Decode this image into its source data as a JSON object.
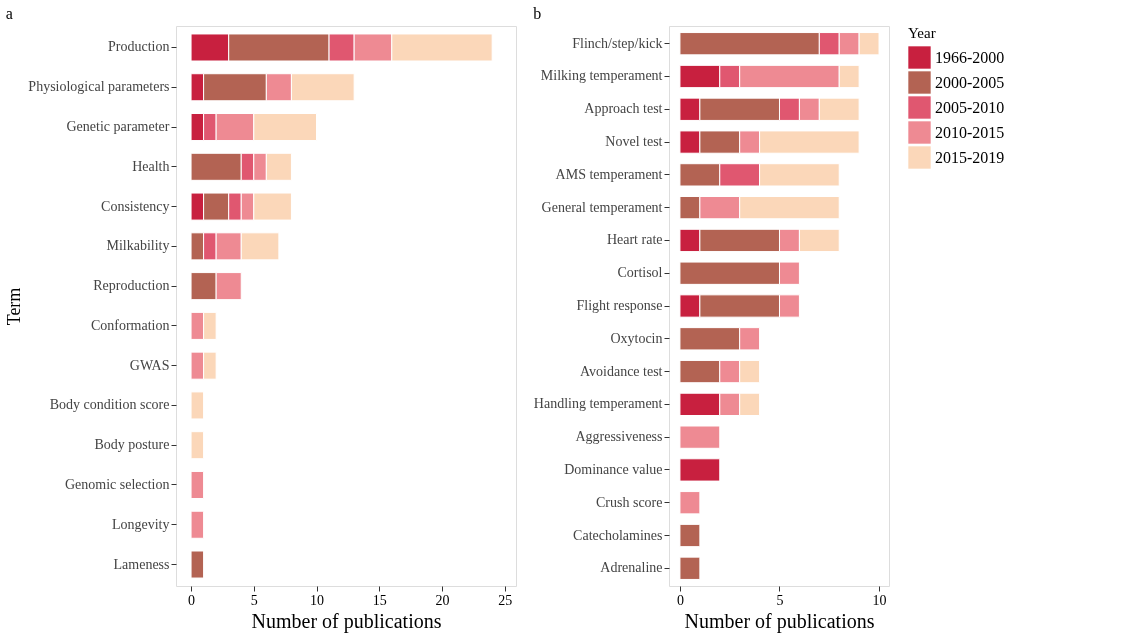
{
  "chart_data": [
    {
      "type": "bar",
      "title": "a",
      "orientation": "horizontal",
      "stacked": true,
      "xlabel": "Number of publications",
      "ylabel": "Term",
      "xlim": [
        -1.2,
        25.9
      ],
      "xticks": [
        0,
        5,
        10,
        15,
        20,
        25
      ],
      "grid": false,
      "legend": "right",
      "categories": [
        "Production",
        "Physiological parameters",
        "Genetic parameter",
        "Health",
        "Consistency",
        "Milkability",
        "Reproduction",
        "Conformation",
        "GWAS",
        "Body condition score",
        "Body posture",
        "Genomic selection",
        "Longevity",
        "Lameness"
      ],
      "series": [
        {
          "name": "1966-2000",
          "color": "#c8203f",
          "values": [
            3,
            1,
            1,
            0,
            1,
            0,
            0,
            0,
            0,
            0,
            0,
            0,
            0,
            0
          ]
        },
        {
          "name": "2000-2005",
          "color": "#b36353",
          "values": [
            8,
            5,
            0,
            4,
            2,
            1,
            2,
            0,
            0,
            0,
            0,
            0,
            0,
            1
          ]
        },
        {
          "name": "2005-2010",
          "color": "#e05770",
          "values": [
            2,
            0,
            1,
            1,
            1,
            1,
            0,
            0,
            0,
            0,
            0,
            0,
            0,
            0
          ]
        },
        {
          "name": "2010-2015",
          "color": "#ee8a93",
          "values": [
            3,
            2,
            3,
            1,
            1,
            2,
            2,
            1,
            1,
            0,
            0,
            1,
            1,
            0
          ]
        },
        {
          "name": "2015-2019",
          "color": "#fbd7b9",
          "values": [
            8,
            5,
            5,
            2,
            3,
            3,
            0,
            1,
            1,
            1,
            1,
            0,
            0,
            0
          ]
        }
      ]
    },
    {
      "type": "bar",
      "title": "b",
      "orientation": "horizontal",
      "stacked": true,
      "xlabel": "Number of publications",
      "legend_title": "Year",
      "xlim": [
        -0.55,
        10.5
      ],
      "xticks": [
        0,
        5,
        10
      ],
      "grid": false,
      "legend": "right",
      "categories": [
        "Flinch/step/kick",
        "Milking temperament",
        "Approach test",
        "Novel test",
        "AMS temperament",
        "General temperament",
        "Heart rate",
        "Cortisol",
        "Flight response",
        "Oxytocin",
        "Avoidance test",
        "Handling temperament",
        "Aggressiveness",
        "Dominance value",
        "Crush score",
        "Catecholamines",
        "Adrenaline"
      ],
      "series": [
        {
          "name": "1966-2000",
          "color": "#c8203f",
          "values": [
            0,
            2,
            1,
            1,
            0,
            0,
            1,
            0,
            1,
            0,
            0,
            2,
            0,
            2,
            0,
            0,
            0
          ]
        },
        {
          "name": "2000-2005",
          "color": "#b36353",
          "values": [
            7,
            0,
            4,
            2,
            2,
            1,
            4,
            5,
            4,
            3,
            2,
            0,
            0,
            0,
            0,
            1,
            1
          ]
        },
        {
          "name": "2005-2010",
          "color": "#e05770",
          "values": [
            1,
            1,
            1,
            0,
            2,
            0,
            0,
            0,
            0,
            0,
            0,
            0,
            0,
            0,
            0,
            0,
            0
          ]
        },
        {
          "name": "2010-2015",
          "color": "#ee8a93",
          "values": [
            1,
            5,
            1,
            1,
            0,
            2,
            1,
            1,
            1,
            1,
            1,
            1,
            2,
            0,
            1,
            0,
            0
          ]
        },
        {
          "name": "2015-2019",
          "color": "#fbd7b9",
          "values": [
            1,
            1,
            2,
            5,
            4,
            5,
            2,
            0,
            0,
            0,
            1,
            1,
            0,
            0,
            0,
            0,
            0
          ]
        }
      ]
    }
  ]
}
